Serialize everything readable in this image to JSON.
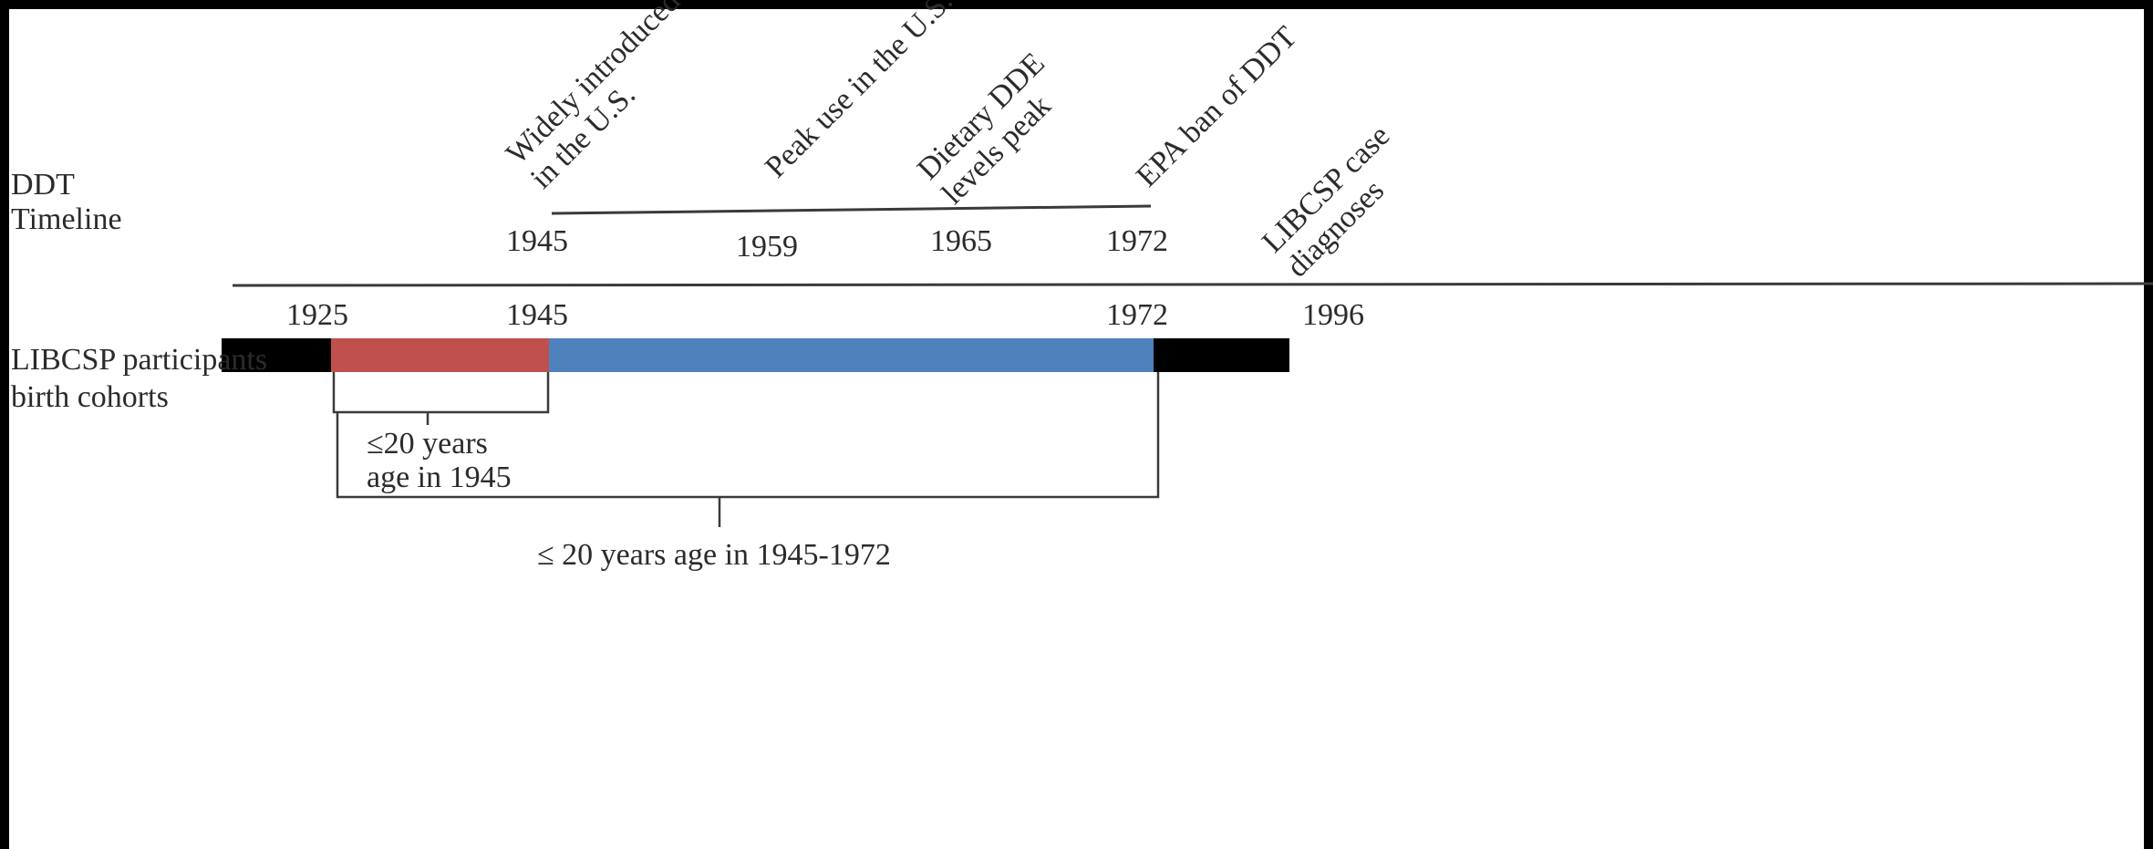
{
  "colors": {
    "background": "#ffffff",
    "frame": "#000000",
    "text": "#2b2b2b",
    "line": "#3a3a3a",
    "segment_outer": "#000000",
    "segment_early": "#c0504d",
    "segment_exposure": "#4f81bd"
  },
  "ddt_timeline": {
    "label_line1": "DDT",
    "label_line2": "Timeline",
    "events": [
      {
        "year": "1945",
        "line1": "Widely introduced",
        "line2": "in the U.S."
      },
      {
        "year": "1959",
        "line1": "Peak use in the U.S.",
        "line2": ""
      },
      {
        "year": "1965",
        "line1": "Dietary DDE",
        "line2": "levels peak"
      },
      {
        "year": "1972",
        "line1": "EPA ban of DDT",
        "line2": ""
      }
    ],
    "case_event": {
      "line1": "LIBCSP case",
      "line2": "diagnoses"
    }
  },
  "cohort": {
    "label_line1": "LIBCSP participants",
    "label_line2": "birth cohorts",
    "years": [
      "1925",
      "1945",
      "1972",
      "1996"
    ],
    "segments": [
      {
        "from": "start",
        "to": "1925",
        "color_key": "segment_outer"
      },
      {
        "from": "1925",
        "to": "1945",
        "color_key": "segment_early"
      },
      {
        "from": "1945",
        "to": "1972",
        "color_key": "segment_exposure"
      },
      {
        "from": "1972",
        "to": "1996",
        "color_key": "segment_outer"
      }
    ]
  },
  "brackets": {
    "inner_line1": "≤20 years",
    "inner_line2": "age in 1945",
    "outer": "≤ 20 years age in 1945-1972"
  }
}
